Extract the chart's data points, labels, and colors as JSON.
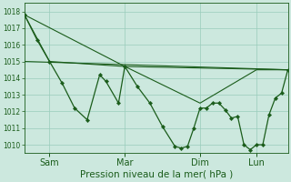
{
  "background_color": "#cce8de",
  "grid_color": "#99ccbb",
  "line_color": "#1a5c1a",
  "ylim": [
    1009.5,
    1018.5
  ],
  "yticks": [
    1010,
    1011,
    1012,
    1013,
    1014,
    1015,
    1016,
    1017,
    1018
  ],
  "ytick_fontsize": 5.5,
  "xlabel": "Pression niveau de la mer( hPa )",
  "xlabel_fontsize": 7.5,
  "xtick_labels": [
    "Sam",
    "Mar",
    "Dim",
    "Lun"
  ],
  "xtick_positions": [
    16,
    64,
    112,
    148
  ],
  "xlim": [
    0,
    168
  ],
  "series1_x": [
    0,
    8,
    16,
    24,
    32,
    40,
    48,
    52,
    60,
    64,
    72,
    80,
    88,
    96,
    100,
    104,
    108,
    112,
    116,
    120,
    124,
    128,
    132,
    136,
    140,
    144,
    148,
    152,
    156,
    160,
    164,
    168
  ],
  "series1_y": [
    1017.8,
    1016.3,
    1015.0,
    1013.7,
    1012.2,
    1011.5,
    1014.2,
    1013.8,
    1012.5,
    1014.7,
    1013.5,
    1012.5,
    1011.1,
    1009.9,
    1009.8,
    1009.9,
    1011.0,
    1012.2,
    1012.2,
    1012.5,
    1012.5,
    1012.1,
    1011.6,
    1011.7,
    1010.0,
    1009.7,
    1010.0,
    1010.0,
    1011.8,
    1012.8,
    1013.1,
    1014.5
  ],
  "series2_x": [
    0,
    64,
    112,
    148,
    168
  ],
  "series2_y": [
    1017.8,
    1014.7,
    1012.5,
    1014.5,
    1014.5
  ],
  "series3_x": [
    0,
    16,
    64,
    168
  ],
  "series3_y": [
    1017.8,
    1015.0,
    1014.7,
    1014.5
  ],
  "series4_x": [
    0,
    168
  ],
  "series4_y": [
    1015.0,
    1014.5
  ],
  "lw_main": 0.9,
  "lw_trend": 0.8,
  "ms": 2.2
}
